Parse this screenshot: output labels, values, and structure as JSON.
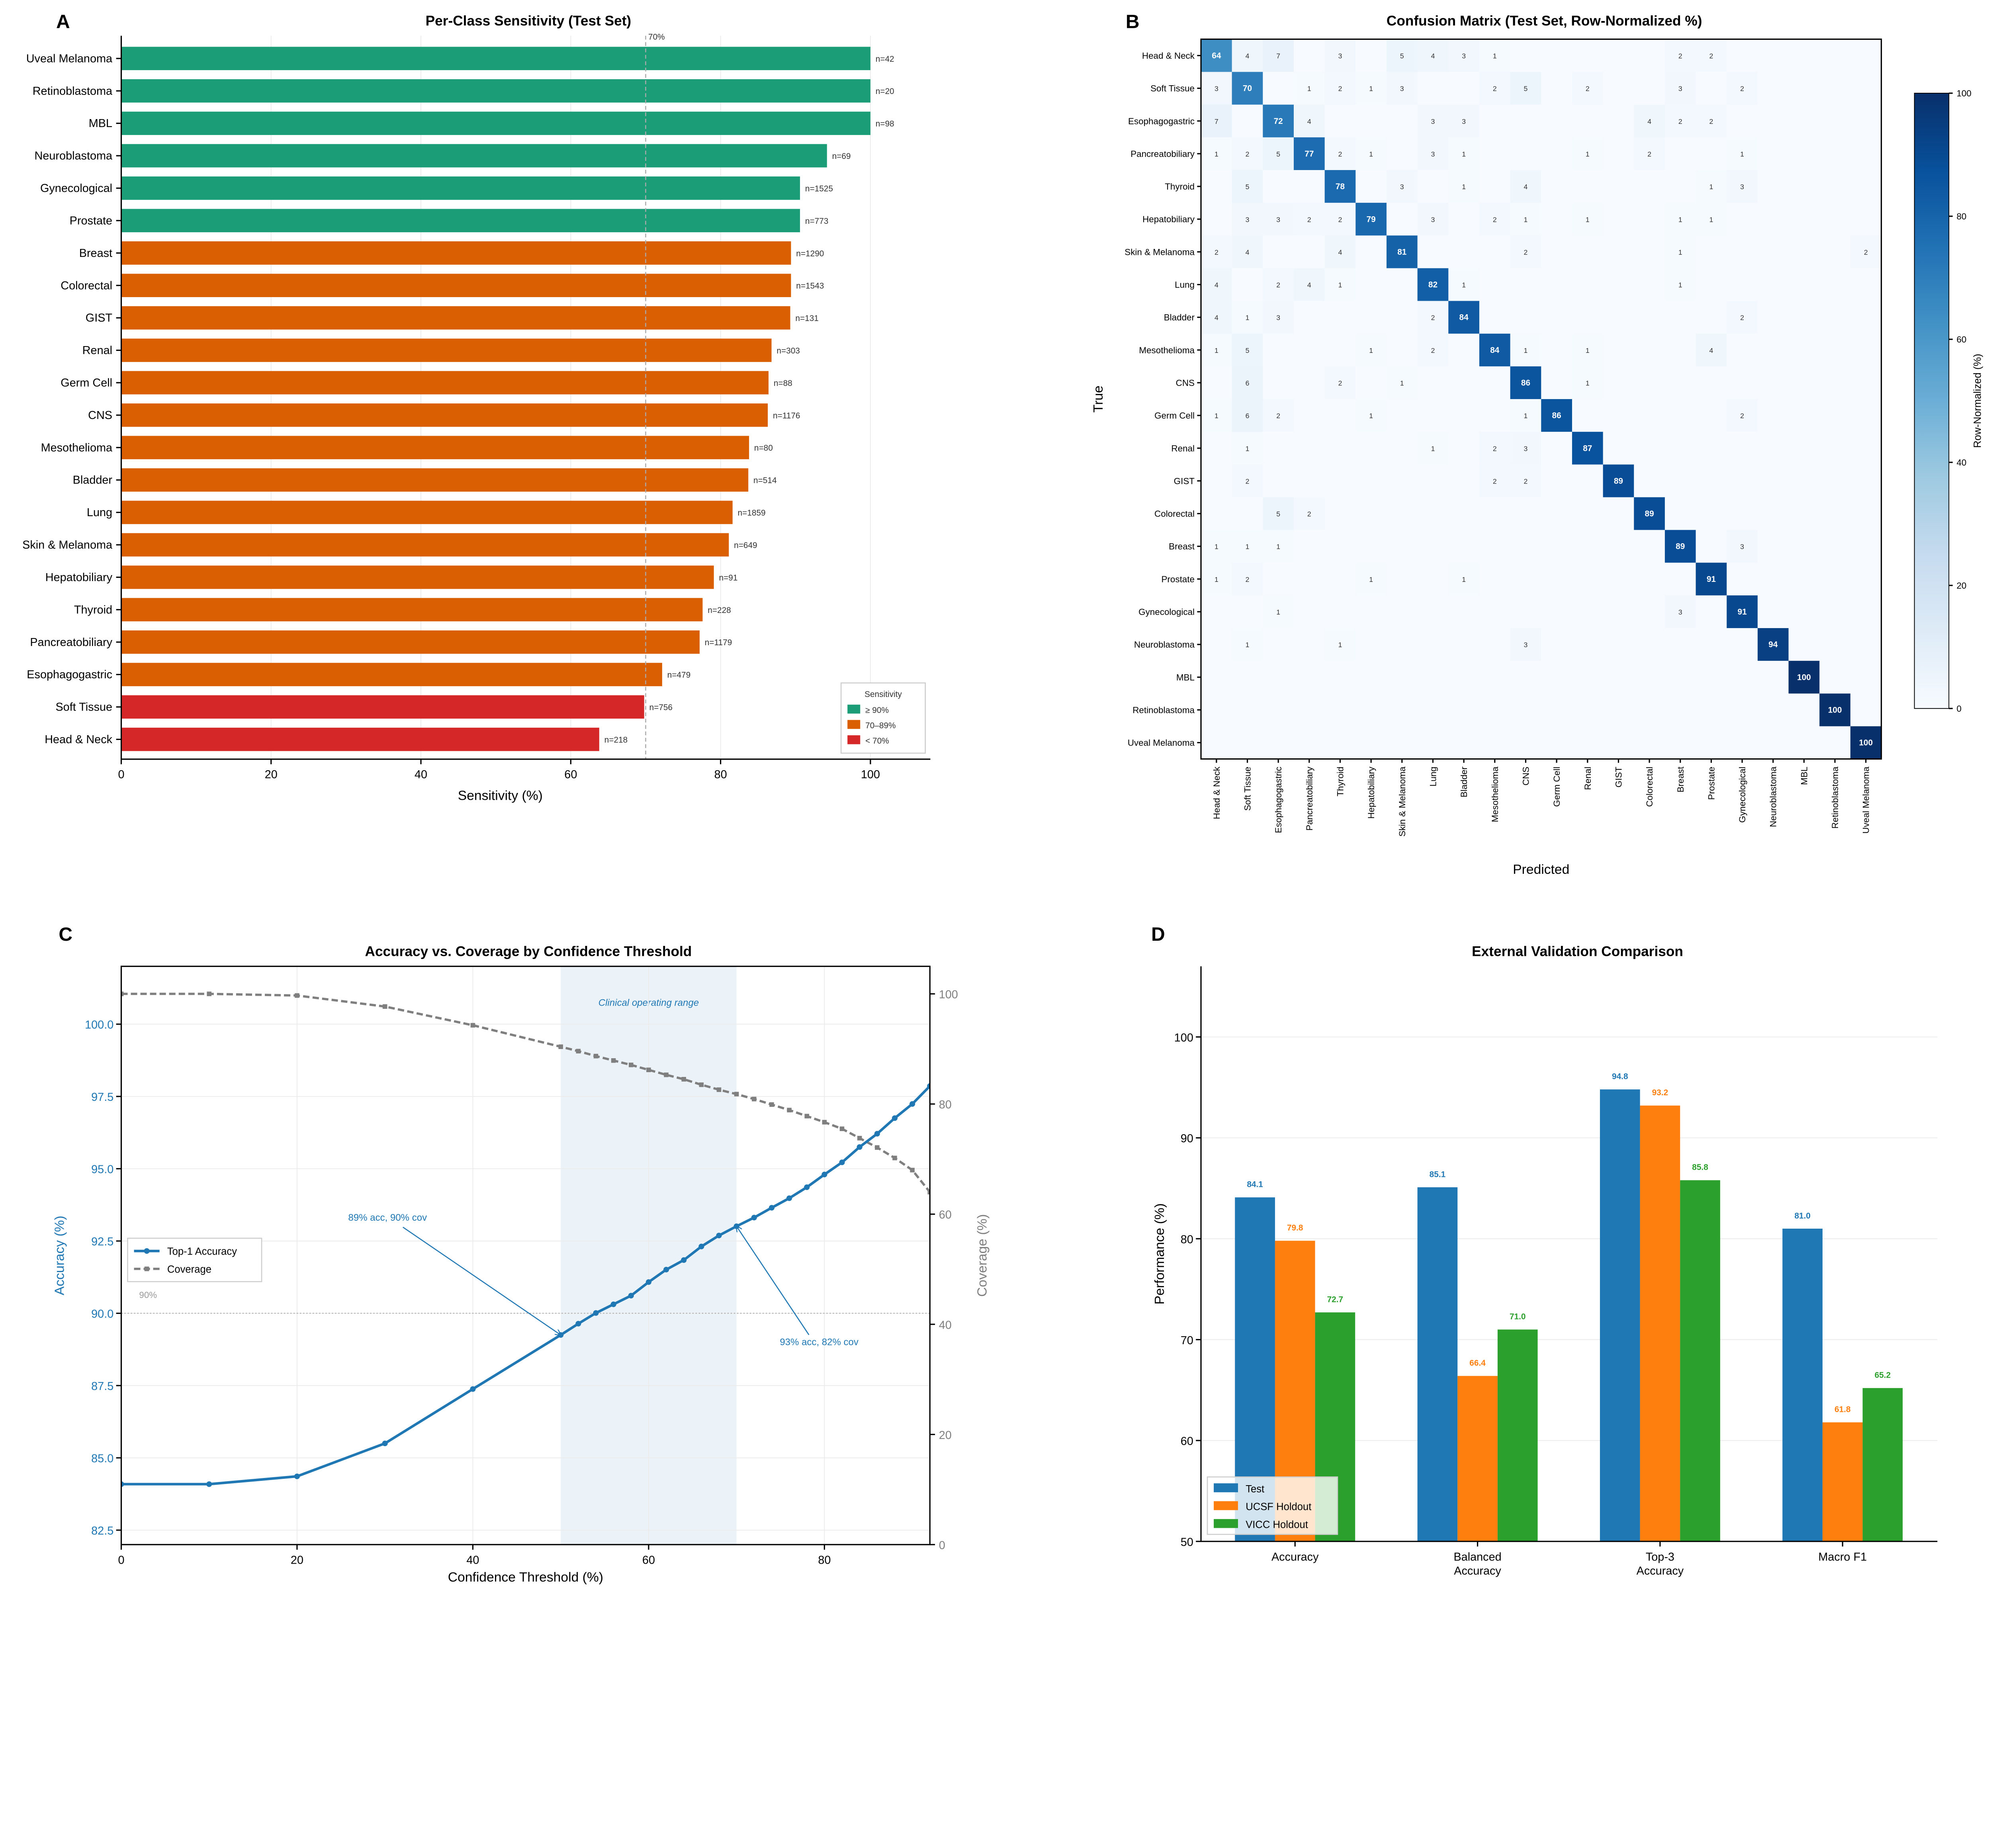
{
  "panel_letters": {
    "a": "A",
    "b": "B",
    "c": "C",
    "d": "D"
  },
  "chart_data": [
    {
      "panel": "A",
      "type": "bar",
      "orientation": "horizontal",
      "title": "Per-Class Sensitivity (Test Set)",
      "xlabel": "Sensitivity (%)",
      "xlim": [
        0,
        108
      ],
      "xticks": [
        "0",
        "20",
        "40",
        "60",
        "80",
        "100"
      ],
      "grid": true,
      "categories": [
        "Uveal Melanoma",
        "Retinoblastoma",
        "MBL",
        "Neuroblastoma",
        "Gynecological",
        "Prostate",
        "Breast",
        "Colorectal",
        "GIST",
        "Renal",
        "Germ Cell",
        "CNS",
        "Mesothelioma",
        "Bladder",
        "Lung",
        "Skin & Melanoma",
        "Hepatobiliary",
        "Thyroid",
        "Pancreatobiliary",
        "Esophagogastric",
        "Soft Tissue",
        "Head & Neck"
      ],
      "values": [
        100,
        100,
        100,
        94.2,
        90.6,
        90.6,
        89.4,
        89.4,
        89.3,
        86.8,
        86.4,
        86.3,
        83.8,
        83.7,
        81.6,
        81.1,
        79.1,
        77.6,
        77.2,
        72.2,
        69.8,
        63.8
      ],
      "n_labels": [
        "n=42",
        "n=20",
        "n=98",
        "n=69",
        "n=1525",
        "n=773",
        "n=1290",
        "n=1543",
        "n=131",
        "n=303",
        "n=88",
        "n=1176",
        "n=80",
        "n=514",
        "n=1859",
        "n=649",
        "n=91",
        "n=228",
        "n=1179",
        "n=479",
        "n=756",
        "n=218"
      ],
      "reference_line": {
        "value": 70,
        "label": "70%"
      },
      "legend": {
        "title": "Sensitivity",
        "placement": "lower-right",
        "entries": [
          {
            "label": "≥ 90%",
            "color": "#1b9e77"
          },
          {
            "label": "70–89%",
            "color": "#d95f02"
          },
          {
            "label": "< 70%",
            "color": "#d62728"
          }
        ]
      }
    },
    {
      "panel": "B",
      "type": "heatmap",
      "title": "Confusion Matrix (Test Set, Row-Normalized %)",
      "xlabel": "Predicted",
      "ylabel": "True",
      "labels": [
        "Head & Neck",
        "Soft Tissue",
        "Esophagogastric",
        "Pancreatobiliary",
        "Thyroid",
        "Hepatobiliary",
        "Skin & Melanoma",
        "Lung",
        "Bladder",
        "Mesothelioma",
        "CNS",
        "Germ Cell",
        "Renal",
        "GIST",
        "Colorectal",
        "Breast",
        "Prostate",
        "Gynecological",
        "Neuroblastoma",
        "MBL",
        "Retinoblastoma",
        "Uveal Melanoma"
      ],
      "values": [
        [
          64,
          4,
          7,
          0,
          3,
          0,
          5,
          4,
          3,
          1,
          0,
          0,
          0,
          0,
          0,
          2,
          2,
          0,
          0,
          0,
          0,
          0
        ],
        [
          3,
          70,
          0,
          1,
          2,
          1,
          3,
          0,
          0,
          2,
          5,
          0,
          2,
          0,
          0,
          3,
          0,
          2,
          0,
          0,
          0,
          0
        ],
        [
          7,
          0,
          72,
          4,
          0,
          0,
          0,
          3,
          3,
          0,
          0,
          0,
          0,
          0,
          4,
          2,
          2,
          0,
          0,
          0,
          0,
          0
        ],
        [
          1,
          2,
          5,
          77,
          2,
          1,
          0,
          3,
          1,
          0,
          0,
          0,
          1,
          0,
          2,
          0,
          0,
          1,
          0,
          0,
          0,
          0
        ],
        [
          0,
          5,
          0,
          0,
          78,
          0,
          3,
          0,
          1,
          0,
          4,
          0,
          0,
          0,
          0,
          0,
          1,
          3,
          0,
          0,
          0,
          0
        ],
        [
          0,
          3,
          3,
          2,
          2,
          79,
          0,
          3,
          0,
          2,
          1,
          0,
          1,
          0,
          0,
          1,
          1,
          0,
          0,
          0,
          0,
          0
        ],
        [
          2,
          4,
          0,
          0,
          4,
          0,
          81,
          0,
          0,
          0,
          2,
          0,
          0,
          0,
          0,
          1,
          0,
          0,
          0,
          0,
          0,
          2
        ],
        [
          4,
          0,
          2,
          4,
          1,
          0,
          0,
          82,
          1,
          0,
          0,
          0,
          0,
          0,
          0,
          1,
          0,
          0,
          0,
          0,
          0,
          0
        ],
        [
          4,
          1,
          3,
          0,
          0,
          0,
          0,
          2,
          84,
          0,
          0,
          0,
          0,
          0,
          0,
          0,
          0,
          2,
          0,
          0,
          0,
          0
        ],
        [
          1,
          5,
          0,
          0,
          0,
          1,
          0,
          2,
          0,
          84,
          1,
          0,
          1,
          0,
          0,
          0,
          4,
          0,
          0,
          0,
          0,
          0
        ],
        [
          0,
          6,
          0,
          0,
          2,
          0,
          1,
          0,
          0,
          0,
          86,
          0,
          1,
          0,
          0,
          0,
          0,
          0,
          0,
          0,
          0,
          0
        ],
        [
          1,
          6,
          2,
          0,
          0,
          1,
          0,
          0,
          0,
          0,
          1,
          86,
          0,
          0,
          0,
          0,
          0,
          2,
          0,
          0,
          0,
          0
        ],
        [
          0,
          1,
          0,
          0,
          0,
          0,
          0,
          1,
          0,
          2,
          3,
          0,
          87,
          0,
          0,
          0,
          0,
          0,
          0,
          0,
          0,
          0
        ],
        [
          0,
          2,
          0,
          0,
          0,
          0,
          0,
          0,
          0,
          2,
          2,
          0,
          0,
          89,
          0,
          0,
          0,
          0,
          0,
          0,
          0,
          0
        ],
        [
          0,
          0,
          5,
          2,
          0,
          0,
          0,
          0,
          0,
          0,
          0,
          0,
          0,
          0,
          89,
          0,
          0,
          0,
          0,
          0,
          0,
          0
        ],
        [
          1,
          1,
          1,
          0,
          0,
          0,
          0,
          0,
          0,
          0,
          0,
          0,
          0,
          0,
          0,
          89,
          0,
          3,
          0,
          0,
          0,
          0
        ],
        [
          1,
          2,
          0,
          0,
          0,
          1,
          0,
          0,
          1,
          0,
          0,
          0,
          0,
          0,
          0,
          0,
          91,
          0,
          0,
          0,
          0,
          0
        ],
        [
          0,
          0,
          1,
          0,
          0,
          0,
          0,
          0,
          0,
          0,
          0,
          0,
          0,
          0,
          0,
          3,
          0,
          91,
          0,
          0,
          0,
          0
        ],
        [
          0,
          1,
          0,
          0,
          1,
          0,
          0,
          0,
          0,
          0,
          3,
          0,
          0,
          0,
          0,
          0,
          0,
          0,
          94,
          0,
          0,
          0
        ],
        [
          0,
          0,
          0,
          0,
          0,
          0,
          0,
          0,
          0,
          0,
          0,
          0,
          0,
          0,
          0,
          0,
          0,
          0,
          0,
          100,
          0,
          0
        ],
        [
          0,
          0,
          0,
          0,
          0,
          0,
          0,
          0,
          0,
          0,
          0,
          0,
          0,
          0,
          0,
          0,
          0,
          0,
          0,
          0,
          100,
          0
        ],
        [
          0,
          0,
          0,
          0,
          0,
          0,
          0,
          0,
          0,
          0,
          0,
          0,
          0,
          0,
          0,
          0,
          0,
          0,
          0,
          0,
          0,
          100
        ]
      ],
      "colorbar": {
        "label": "Row-Normalized (%)",
        "range": [
          0,
          100
        ],
        "ticks": [
          "0",
          "20",
          "40",
          "60",
          "80",
          "100"
        ],
        "colormap": "Blues"
      }
    },
    {
      "panel": "C",
      "type": "line",
      "title": "Accuracy vs. Coverage by Confidence Threshold",
      "xlabel": "Confidence Threshold (%)",
      "ylabel": "Accuracy (%)",
      "y2label": "Coverage (%)",
      "xlim": [
        0,
        92
      ],
      "ylim": [
        82,
        102
      ],
      "y2lim": [
        0,
        105
      ],
      "xticks": [
        "0",
        "20",
        "40",
        "60",
        "80"
      ],
      "yticks": [
        "82.5",
        "85.0",
        "87.5",
        "90.0",
        "92.5",
        "95.0",
        "97.5",
        "100.0"
      ],
      "y2ticks": [
        "0",
        "20",
        "40",
        "60",
        "80",
        "100"
      ],
      "grid": true,
      "x": [
        0,
        10,
        20,
        30,
        40,
        50,
        52,
        54,
        56,
        58,
        60,
        62,
        64,
        66,
        68,
        70,
        72,
        74,
        76,
        78,
        80,
        82,
        84,
        86,
        88,
        90,
        92
      ],
      "series": [
        {
          "name": "Top-1 Accuracy",
          "color": "#1f77b4",
          "axis": "left",
          "values": [
            84.09,
            84.09,
            84.36,
            85.5,
            87.38,
            89.25,
            89.64,
            90.01,
            90.31,
            90.61,
            91.08,
            91.51,
            91.84,
            92.31,
            92.69,
            93.01,
            93.31,
            93.65,
            93.98,
            94.36,
            94.8,
            95.22,
            95.75,
            96.21,
            96.75,
            97.24,
            97.86
          ]
        },
        {
          "name": "Coverage",
          "color": "#7f7f7f",
          "axis": "right",
          "values": [
            100,
            100,
            99.7,
            97.7,
            94.3,
            90.4,
            89.6,
            88.7,
            87.9,
            87.1,
            86.2,
            85.3,
            84.5,
            83.5,
            82.6,
            81.8,
            80.9,
            79.9,
            78.9,
            77.8,
            76.7,
            75.5,
            73.8,
            72.1,
            70.2,
            68.0,
            64.0
          ]
        }
      ],
      "shaded_range": {
        "from": 50,
        "to": 70,
        "label": "Clinical operating range"
      },
      "reference_line": {
        "value": 90,
        "label": "90%"
      },
      "annotations": [
        {
          "text": "89% acc, 90% cov",
          "x": 50,
          "y": 89.25,
          "text_x": 30.3,
          "text_y": 93.2
        },
        {
          "text": "93% acc, 82% cov",
          "x": 70,
          "y": 93.01,
          "text_x": 79.4,
          "text_y": 88.9
        }
      ],
      "legend": {
        "placement": "center-left"
      }
    },
    {
      "panel": "D",
      "type": "bar",
      "title": "External Validation Comparison",
      "ylabel": "Performance (%)",
      "ylim": [
        50,
        107
      ],
      "yticks": [
        "50",
        "60",
        "70",
        "80",
        "90",
        "100"
      ],
      "grid": true,
      "categories": [
        "Accuracy",
        "Balanced Accuracy",
        "Top-3 Accuracy",
        "Macro F1"
      ],
      "category_lines": [
        [
          "Accuracy"
        ],
        [
          "Balanced",
          "Accuracy"
        ],
        [
          "Top-3",
          "Accuracy"
        ],
        [
          "Macro F1"
        ]
      ],
      "series": [
        {
          "name": "Test",
          "color": "#1f77b4",
          "values": [
            84.1,
            85.1,
            94.8,
            81.0
          ],
          "labels": [
            "84.1",
            "85.1",
            "94.8",
            "81.0"
          ]
        },
        {
          "name": "UCSF Holdout",
          "color": "#ff7f0e",
          "values": [
            79.8,
            66.4,
            93.2,
            61.8
          ],
          "labels": [
            "79.8",
            "66.4",
            "93.2",
            "61.8"
          ]
        },
        {
          "name": "VICC Holdout",
          "color": "#2ca02c",
          "values": [
            72.7,
            71.0,
            85.8,
            65.2
          ],
          "labels": [
            "72.7",
            "71.0",
            "85.8",
            "65.2"
          ]
        }
      ],
      "legend": {
        "placement": "lower-left"
      }
    }
  ]
}
